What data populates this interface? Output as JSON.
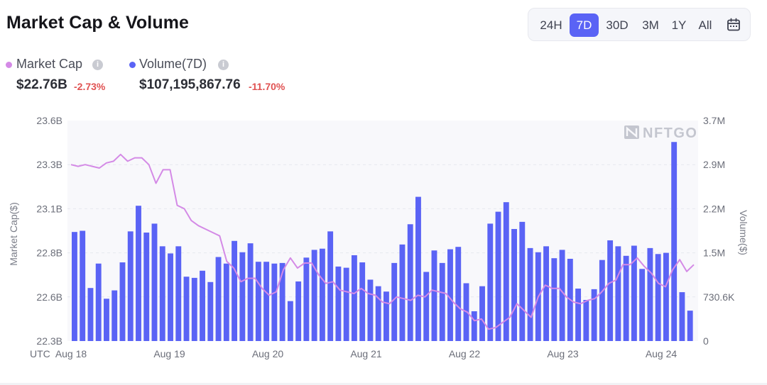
{
  "header": {
    "title": "Market Cap & Volume",
    "ranges": [
      "24H",
      "7D",
      "30D",
      "3M",
      "1Y",
      "All"
    ],
    "active_range": "7D",
    "calendar_icon": "calendar-icon"
  },
  "stats": {
    "market_cap": {
      "label": "Market Cap",
      "value": "$22.76B",
      "change": "-2.73%",
      "dot_color": "#d48ae6"
    },
    "volume": {
      "label": "Volume(7D)",
      "value": "$107,195,867.76",
      "change": "-11.70%",
      "dot_color": "#5a63f5"
    },
    "info_icon": "i"
  },
  "watermark": "NFTGO",
  "colors": {
    "bar": "#5a63f5",
    "line": "#d48ae6",
    "accent": "#5a63f5",
    "negative": "#e05252"
  },
  "chart_data": {
    "type": "bar+line",
    "timezone_label": "UTC",
    "x_tick_labels": [
      "Aug 18",
      "Aug 19",
      "Aug 20",
      "Aug 21",
      "Aug 22",
      "Aug 23",
      "Aug 24"
    ],
    "y_left": {
      "label": "Market Cap($)",
      "ticks": [
        "23.6B",
        "23.3B",
        "23.1B",
        "22.8B",
        "22.6B",
        "22.3B"
      ],
      "range_billions": [
        22.3,
        23.6
      ]
    },
    "y_right": {
      "label": "Volume($)",
      "ticks": [
        "3.7M",
        "2.9M",
        "2.2M",
        "1.5M",
        "730.6K",
        "0"
      ],
      "range_millions": [
        0,
        3.7
      ]
    },
    "grid": true,
    "series": [
      {
        "name": "Volume(7D)",
        "type": "bar",
        "axis": "right",
        "values_millions": [
          1.83,
          1.85,
          0.89,
          1.3,
          0.71,
          0.85,
          1.32,
          1.84,
          2.27,
          1.82,
          1.97,
          1.59,
          1.47,
          1.59,
          1.08,
          1.06,
          1.18,
          0.99,
          1.41,
          1.3,
          1.68,
          1.49,
          1.64,
          1.33,
          1.33,
          1.3,
          1.31,
          0.67,
          1.0,
          1.4,
          1.53,
          1.55,
          1.84,
          1.25,
          1.23,
          1.44,
          1.32,
          1.03,
          0.92,
          0.83,
          1.31,
          1.62,
          1.96,
          2.42,
          1.16,
          1.52,
          1.31,
          1.54,
          1.58,
          0.97,
          0.5,
          0.92,
          1.97,
          2.17,
          2.33,
          1.88,
          2.0,
          1.56,
          1.49,
          1.59,
          1.39,
          1.53,
          1.38,
          0.88,
          0.69,
          0.87,
          1.36,
          1.69,
          1.59,
          1.43,
          1.6,
          1.21,
          1.56,
          1.46,
          1.48,
          3.34,
          0.82,
          0.51
        ],
        "color": "#5a63f5"
      },
      {
        "name": "Market Cap",
        "type": "line",
        "axis": "left",
        "values_billions": [
          23.34,
          23.33,
          23.34,
          23.33,
          23.32,
          23.35,
          23.36,
          23.4,
          23.36,
          23.38,
          23.38,
          23.34,
          23.23,
          23.31,
          23.31,
          23.1,
          23.08,
          23.01,
          22.98,
          22.96,
          22.94,
          22.92,
          22.77,
          22.73,
          22.65,
          22.67,
          22.67,
          22.61,
          22.57,
          22.59,
          22.72,
          22.79,
          22.73,
          22.76,
          22.76,
          22.69,
          22.64,
          22.65,
          22.6,
          22.59,
          22.58,
          22.61,
          22.58,
          22.57,
          22.53,
          22.52,
          22.56,
          22.55,
          22.54,
          22.57,
          22.56,
          22.6,
          22.59,
          22.58,
          22.53,
          22.49,
          22.47,
          22.42,
          22.43,
          22.37,
          22.38,
          22.41,
          22.44,
          22.52,
          22.48,
          22.44,
          22.56,
          22.63,
          22.61,
          22.61,
          22.56,
          22.53,
          22.52,
          22.54,
          22.55,
          22.59,
          22.64,
          22.66,
          22.75,
          22.75,
          22.79,
          22.74,
          22.7,
          22.64,
          22.62,
          22.72,
          22.78,
          22.71,
          22.75
        ],
        "color": "#d48ae6"
      }
    ]
  }
}
